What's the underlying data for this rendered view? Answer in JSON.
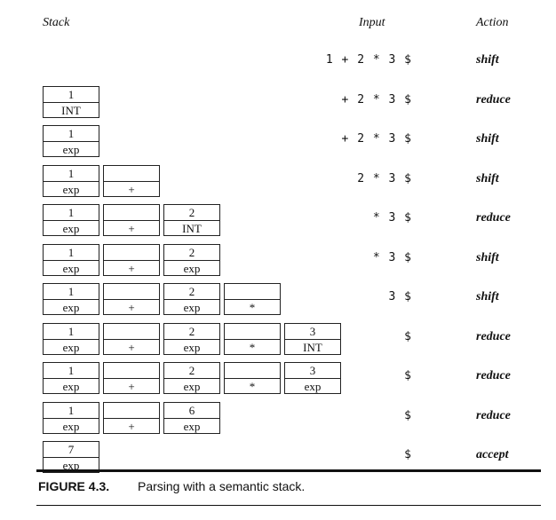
{
  "headers": {
    "stack": "Stack",
    "input": "Input",
    "action": "Action"
  },
  "steps": [
    {
      "stack": [],
      "input": "1 + 2 * 3 $",
      "action": "shift"
    },
    {
      "stack": [
        {
          "value": "1",
          "token": "INT"
        }
      ],
      "input": "+ 2 * 3 $",
      "action": "reduce"
    },
    {
      "stack": [
        {
          "value": "1",
          "token": "exp"
        }
      ],
      "input": "+ 2 * 3 $",
      "action": "shift"
    },
    {
      "stack": [
        {
          "value": "1",
          "token": "exp"
        },
        {
          "value": "",
          "token": "+"
        }
      ],
      "input": "2 * 3 $",
      "action": "shift"
    },
    {
      "stack": [
        {
          "value": "1",
          "token": "exp"
        },
        {
          "value": "",
          "token": "+"
        },
        {
          "value": "2",
          "token": "INT"
        }
      ],
      "input": "* 3 $",
      "action": "reduce"
    },
    {
      "stack": [
        {
          "value": "1",
          "token": "exp"
        },
        {
          "value": "",
          "token": "+"
        },
        {
          "value": "2",
          "token": "exp"
        }
      ],
      "input": "* 3 $",
      "action": "shift"
    },
    {
      "stack": [
        {
          "value": "1",
          "token": "exp"
        },
        {
          "value": "",
          "token": "+"
        },
        {
          "value": "2",
          "token": "exp"
        },
        {
          "value": "",
          "token": "*"
        }
      ],
      "input": "3 $",
      "action": "shift"
    },
    {
      "stack": [
        {
          "value": "1",
          "token": "exp"
        },
        {
          "value": "",
          "token": "+"
        },
        {
          "value": "2",
          "token": "exp"
        },
        {
          "value": "",
          "token": "*"
        },
        {
          "value": "3",
          "token": "INT"
        }
      ],
      "input": "$",
      "action": "reduce"
    },
    {
      "stack": [
        {
          "value": "1",
          "token": "exp"
        },
        {
          "value": "",
          "token": "+"
        },
        {
          "value": "2",
          "token": "exp"
        },
        {
          "value": "",
          "token": "*"
        },
        {
          "value": "3",
          "token": "exp"
        }
      ],
      "input": "$",
      "action": "reduce"
    },
    {
      "stack": [
        {
          "value": "1",
          "token": "exp"
        },
        {
          "value": "",
          "token": "+"
        },
        {
          "value": "6",
          "token": "exp"
        }
      ],
      "input": "$",
      "action": "reduce"
    },
    {
      "stack": [
        {
          "value": "7",
          "token": "exp"
        }
      ],
      "input": "$",
      "action": "accept"
    }
  ],
  "caption": {
    "label": "FIGURE 4.3.",
    "text": "Parsing with a semantic stack."
  }
}
